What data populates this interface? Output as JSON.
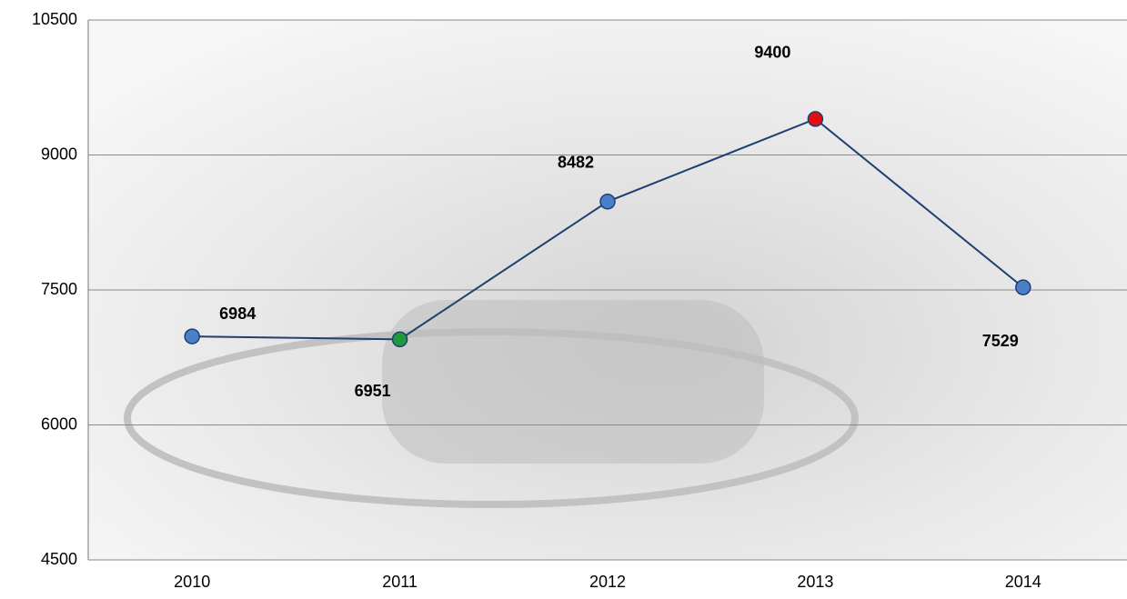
{
  "chart_data": {
    "type": "line",
    "categories": [
      "2010",
      "2011",
      "2012",
      "2013",
      "2014"
    ],
    "values": [
      6984,
      6951,
      8482,
      9400,
      7529
    ],
    "color": "#1f3f73",
    "point_colors": [
      "#4a7fc9",
      "#1e9a3a",
      "#4a7fc9",
      "#e01010",
      "#4a7fc9"
    ],
    "ylim": [
      4500,
      10500
    ],
    "yticks": [
      4500,
      6000,
      7500,
      9000,
      10500
    ],
    "grid": true
  }
}
